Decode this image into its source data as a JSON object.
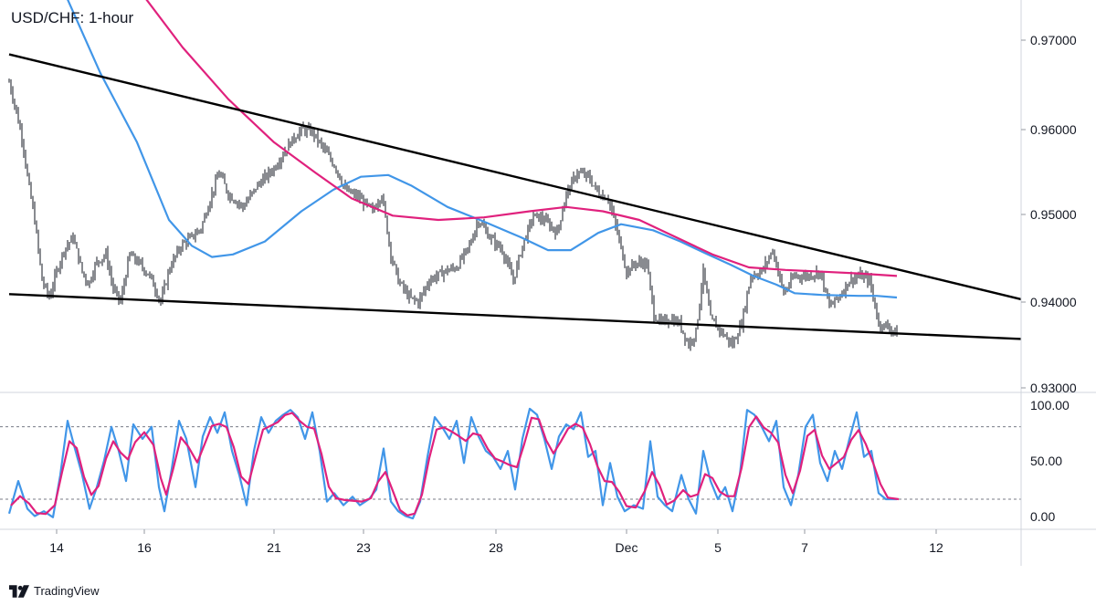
{
  "title": "USD/CHF: 1-hour",
  "brand": {
    "name": "TradingView"
  },
  "colors": {
    "candle": "#131722",
    "ma_fast": "#4196e8",
    "ma_slow": "#e0217d",
    "trendline": "#000000",
    "stoch_k": "#4196e8",
    "stoch_d": "#e0217d",
    "grid": "#e0e3eb",
    "dashed": "#787b86"
  },
  "chart_data": [
    {
      "type": "candlestick",
      "title": "USD/CHF: 1-hour",
      "price_axis": {
        "ticks": [
          "0.97000",
          "0.96000",
          "0.95000",
          "0.94000",
          "0.93000"
        ],
        "ylim": [
          0.929,
          0.9745
        ]
      },
      "time_axis": {
        "ticks": [
          "14",
          "16",
          "21",
          "23",
          "28",
          "Dec",
          "5",
          "7",
          "12"
        ]
      },
      "price_path": [
        [
          0,
          0.964
        ],
        [
          4,
          0.9675
        ],
        [
          10,
          0.965
        ],
        [
          18,
          0.9615
        ],
        [
          25,
          0.958
        ],
        [
          30,
          0.954
        ],
        [
          38,
          0.949
        ],
        [
          46,
          0.942
        ],
        [
          54,
          0.94
        ],
        [
          62,
          0.943
        ],
        [
          70,
          0.9455
        ],
        [
          80,
          0.947
        ],
        [
          90,
          0.943
        ],
        [
          97,
          0.9415
        ],
        [
          105,
          0.944
        ],
        [
          116,
          0.945
        ],
        [
          124,
          0.941
        ],
        [
          132,
          0.9395
        ],
        [
          142,
          0.945
        ],
        [
          152,
          0.944
        ],
        [
          164,
          0.9425
        ],
        [
          176,
          0.9395
        ],
        [
          186,
          0.9435
        ],
        [
          198,
          0.946
        ],
        [
          210,
          0.947
        ],
        [
          220,
          0.948
        ],
        [
          232,
          0.952
        ],
        [
          240,
          0.9545
        ],
        [
          250,
          0.952
        ],
        [
          266,
          0.9505
        ],
        [
          282,
          0.953
        ],
        [
          300,
          0.955
        ],
        [
          318,
          0.958
        ],
        [
          330,
          0.9595
        ],
        [
          342,
          0.9592
        ],
        [
          356,
          0.957
        ],
        [
          368,
          0.955
        ],
        [
          378,
          0.9525
        ],
        [
          394,
          0.9515
        ],
        [
          408,
          0.95
        ],
        [
          418,
          0.952
        ],
        [
          428,
          0.945
        ],
        [
          436,
          0.942
        ],
        [
          448,
          0.94
        ],
        [
          458,
          0.9395
        ],
        [
          470,
          0.942
        ],
        [
          486,
          0.943
        ],
        [
          500,
          0.9435
        ],
        [
          514,
          0.946
        ],
        [
          524,
          0.949
        ],
        [
          536,
          0.947
        ],
        [
          550,
          0.9455
        ],
        [
          562,
          0.942
        ],
        [
          572,
          0.946
        ],
        [
          584,
          0.9495
        ],
        [
          596,
          0.949
        ],
        [
          610,
          0.9475
        ],
        [
          620,
          0.952
        ],
        [
          632,
          0.9545
        ],
        [
          644,
          0.954
        ],
        [
          656,
          0.952
        ],
        [
          666,
          0.9515
        ],
        [
          676,
          0.9475
        ],
        [
          686,
          0.943
        ],
        [
          696,
          0.944
        ],
        [
          708,
          0.944
        ],
        [
          716,
          0.938
        ],
        [
          724,
          0.937
        ],
        [
          734,
          0.9375
        ],
        [
          744,
          0.937
        ],
        [
          754,
          0.9345
        ],
        [
          762,
          0.936
        ],
        [
          770,
          0.943
        ],
        [
          778,
          0.9375
        ],
        [
          790,
          0.936
        ],
        [
          802,
          0.9345
        ],
        [
          812,
          0.937
        ],
        [
          822,
          0.9425
        ],
        [
          834,
          0.943
        ],
        [
          846,
          0.9455
        ],
        [
          858,
          0.9405
        ],
        [
          870,
          0.9425
        ],
        [
          884,
          0.9425
        ],
        [
          898,
          0.943
        ],
        [
          908,
          0.939
        ],
        [
          918,
          0.94
        ],
        [
          930,
          0.942
        ],
        [
          942,
          0.9425
        ],
        [
          952,
          0.942
        ],
        [
          962,
          0.937
        ],
        [
          974,
          0.9365
        ],
        [
          982,
          0.9358
        ]
      ],
      "ma_fast_path": [
        [
          68,
          0.976
        ],
        [
          110,
          0.966
        ],
        [
          150,
          0.958
        ],
        [
          185,
          0.949
        ],
        [
          210,
          0.946
        ],
        [
          232,
          0.9447
        ],
        [
          255,
          0.945
        ],
        [
          290,
          0.9465
        ],
        [
          330,
          0.95
        ],
        [
          365,
          0.9525
        ],
        [
          395,
          0.954
        ],
        [
          425,
          0.9542
        ],
        [
          450,
          0.953
        ],
        [
          490,
          0.9505
        ],
        [
          530,
          0.9488
        ],
        [
          570,
          0.947
        ],
        [
          600,
          0.9455
        ],
        [
          625,
          0.9455
        ],
        [
          655,
          0.9475
        ],
        [
          680,
          0.9485
        ],
        [
          715,
          0.9478
        ],
        [
          745,
          0.9465
        ],
        [
          775,
          0.945
        ],
        [
          800,
          0.9438
        ],
        [
          825,
          0.9425
        ],
        [
          850,
          0.9415
        ],
        [
          870,
          0.9405
        ],
        [
          900,
          0.9403
        ],
        [
          940,
          0.9402
        ],
        [
          960,
          0.9402
        ],
        [
          982,
          0.94
        ]
      ],
      "ma_slow_path": [
        [
          150,
          0.976
        ],
        [
          200,
          0.969
        ],
        [
          250,
          0.963
        ],
        [
          300,
          0.958
        ],
        [
          345,
          0.9545
        ],
        [
          385,
          0.9515
        ],
        [
          430,
          0.9495
        ],
        [
          480,
          0.949
        ],
        [
          530,
          0.9493
        ],
        [
          580,
          0.95
        ],
        [
          620,
          0.9505
        ],
        [
          660,
          0.95
        ],
        [
          700,
          0.949
        ],
        [
          740,
          0.947
        ],
        [
          780,
          0.945
        ],
        [
          820,
          0.9435
        ],
        [
          860,
          0.9432
        ],
        [
          900,
          0.943
        ],
        [
          940,
          0.9428
        ],
        [
          982,
          0.9425
        ]
      ],
      "trendlines": [
        {
          "from": [
            10,
            0.9682
          ],
          "to": [
            1118,
            0.9398
          ]
        },
        {
          "from": [
            10,
            0.9404
          ],
          "to": [
            1118,
            0.9352
          ]
        }
      ]
    },
    {
      "type": "line",
      "title": "",
      "ticks": [
        "100.00",
        "50.00",
        "0.00"
      ],
      "ylim": [
        -5,
        107
      ],
      "levels": [
        80,
        20
      ],
      "series": [
        {
          "values": [
            [
              10,
              8
            ],
            [
              20,
              35
            ],
            [
              30,
              12
            ],
            [
              38,
              6
            ],
            [
              48,
              10
            ],
            [
              58,
              5
            ],
            [
              66,
              40
            ],
            [
              74,
              85
            ],
            [
              82,
              62
            ],
            [
              90,
              40
            ],
            [
              98,
              12
            ],
            [
              106,
              30
            ],
            [
              114,
              52
            ],
            [
              122,
              80
            ],
            [
              130,
              60
            ],
            [
              138,
              35
            ],
            [
              146,
              82
            ],
            [
              156,
              70
            ],
            [
              166,
              80
            ],
            [
              174,
              30
            ],
            [
              180,
              10
            ],
            [
              188,
              45
            ],
            [
              196,
              85
            ],
            [
              204,
              70
            ],
            [
              214,
              30
            ],
            [
              222,
              72
            ],
            [
              230,
              88
            ],
            [
              238,
              75
            ],
            [
              246,
              92
            ],
            [
              254,
              60
            ],
            [
              262,
              40
            ],
            [
              270,
              15
            ],
            [
              278,
              60
            ],
            [
              286,
              88
            ],
            [
              294,
              75
            ],
            [
              302,
              85
            ],
            [
              310,
              90
            ],
            [
              318,
              94
            ],
            [
              326,
              88
            ],
            [
              334,
              70
            ],
            [
              342,
              92
            ],
            [
              350,
              60
            ],
            [
              358,
              18
            ],
            [
              366,
              25
            ],
            [
              376,
              15
            ],
            [
              386,
              22
            ],
            [
              394,
              15
            ],
            [
              404,
              20
            ],
            [
              412,
              28
            ],
            [
              420,
              62
            ],
            [
              428,
              18
            ],
            [
              436,
              10
            ],
            [
              444,
              6
            ],
            [
              452,
              4
            ],
            [
              460,
              18
            ],
            [
              468,
              55
            ],
            [
              476,
              88
            ],
            [
              484,
              80
            ],
            [
              492,
              70
            ],
            [
              500,
              85
            ],
            [
              508,
              50
            ],
            [
              516,
              88
            ],
            [
              524,
              72
            ],
            [
              532,
              60
            ],
            [
              540,
              55
            ],
            [
              548,
              45
            ],
            [
              556,
              60
            ],
            [
              564,
              28
            ],
            [
              572,
              70
            ],
            [
              580,
              95
            ],
            [
              588,
              90
            ],
            [
              596,
              70
            ],
            [
              604,
              45
            ],
            [
              612,
              72
            ],
            [
              620,
              82
            ],
            [
              628,
              78
            ],
            [
              636,
              92
            ],
            [
              644,
              55
            ],
            [
              652,
              60
            ],
            [
              660,
              15
            ],
            [
              668,
              50
            ],
            [
              676,
              22
            ],
            [
              684,
              10
            ],
            [
              694,
              15
            ],
            [
              704,
              12
            ],
            [
              712,
              68
            ],
            [
              720,
              22
            ],
            [
              728,
              15
            ],
            [
              736,
              10
            ],
            [
              746,
              40
            ],
            [
              754,
              20
            ],
            [
              762,
              8
            ],
            [
              770,
              60
            ],
            [
              778,
              35
            ],
            [
              786,
              20
            ],
            [
              794,
              30
            ],
            [
              802,
              10
            ],
            [
              810,
              40
            ],
            [
              818,
              94
            ],
            [
              826,
              90
            ],
            [
              834,
              80
            ],
            [
              842,
              68
            ],
            [
              850,
              85
            ],
            [
              858,
              30
            ],
            [
              866,
              15
            ],
            [
              874,
              40
            ],
            [
              882,
              80
            ],
            [
              890,
              90
            ],
            [
              898,
              50
            ],
            [
              906,
              35
            ],
            [
              914,
              60
            ],
            [
              922,
              45
            ],
            [
              930,
              70
            ],
            [
              938,
              92
            ],
            [
              946,
              55
            ],
            [
              954,
              60
            ],
            [
              962,
              25
            ],
            [
              970,
              20
            ],
            [
              982,
              20
            ]
          ]
        }
      ]
    }
  ]
}
